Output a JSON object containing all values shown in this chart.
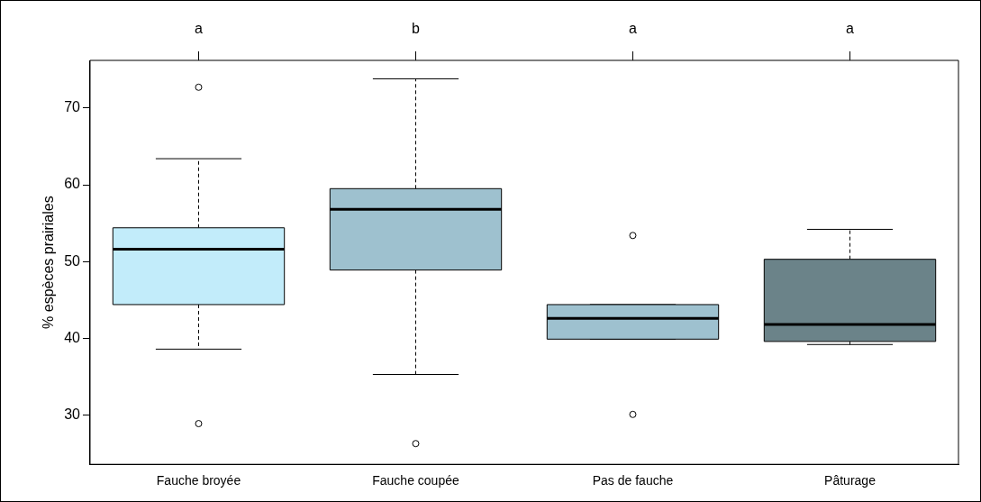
{
  "chart_data": {
    "type": "box",
    "ylabel": "% espèces prairiales",
    "categories": [
      "Fauche broyée",
      "Fauche coupée",
      "Pas de fauche",
      "Pâturage"
    ],
    "colors": [
      "#c2ecfa",
      "#9ec1cf",
      "#9ec1cf",
      "#6b8389"
    ],
    "boxes": [
      {
        "low": 38.6,
        "q1": 44.4,
        "median": 51.6,
        "q3": 54.4,
        "high": 63.4,
        "outliers": [
          72.7,
          28.9
        ]
      },
      {
        "low": 35.3,
        "q1": 48.9,
        "median": 56.8,
        "q3": 59.5,
        "high": 73.8,
        "outliers": [
          26.3
        ]
      },
      {
        "low": 39.9,
        "q1": 39.9,
        "median": 42.6,
        "q3": 44.4,
        "high": 44.4,
        "outliers": [
          53.4,
          30.1
        ]
      },
      {
        "low": 39.2,
        "q1": 39.6,
        "median": 41.8,
        "q3": 50.3,
        "high": 54.2
      }
    ],
    "ylim": [
      23.6,
      76.2
    ],
    "yticks": [
      30,
      40,
      50,
      60,
      70
    ],
    "grid": false,
    "legend": false,
    "annotations": [
      {
        "text": "a",
        "x": "Fauche broyée"
      },
      {
        "text": "b",
        "x": "Fauche coupée"
      },
      {
        "text": "a",
        "x": "Pas de fauche"
      },
      {
        "text": "a",
        "x": "Pâturage"
      }
    ]
  }
}
